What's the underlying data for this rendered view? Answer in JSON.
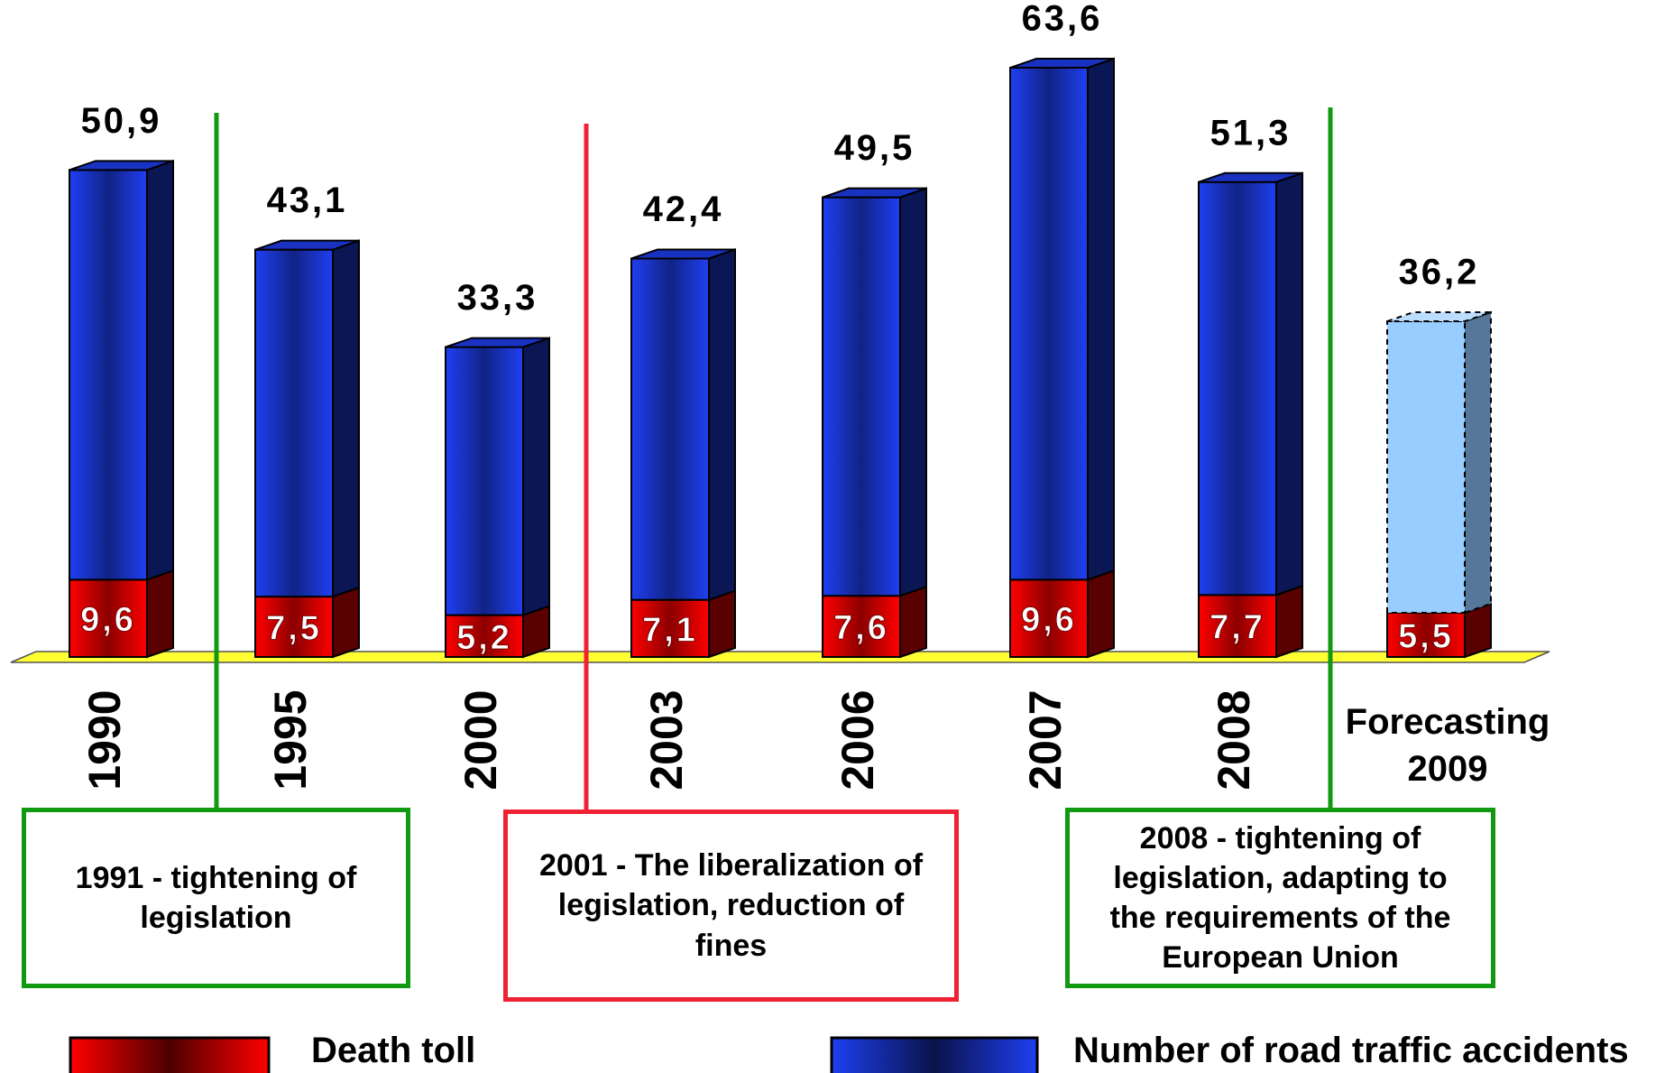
{
  "chart_data": {
    "type": "bar",
    "stacked": true,
    "categories": [
      "1990",
      "1995",
      "2000",
      "2003",
      "2006",
      "2007",
      "2008",
      "Forecasting 2009"
    ],
    "series": [
      {
        "name": "Death toll",
        "color": "#ff0000",
        "values": [
          9.6,
          7.5,
          5.2,
          7.1,
          7.6,
          9.6,
          7.7,
          5.5
        ],
        "value_labels": [
          "9,6",
          "7,5",
          "5,2",
          "7,1",
          "7,6",
          "9,6",
          "7,7",
          "5,5"
        ]
      },
      {
        "name": "Number of road traffic accidents",
        "color": "#1f3ff2",
        "colors": [
          "#1f3ff2",
          "#1f3ff2",
          "#1f3ff2",
          "#1f3ff2",
          "#1f3ff2",
          "#1f3ff2",
          "#1f3ff2",
          "#99ccff"
        ],
        "values": [
          50.9,
          43.1,
          33.3,
          42.4,
          49.5,
          63.6,
          51.3,
          36.2
        ],
        "value_labels": [
          "50,9",
          "43,1",
          "33,3",
          "42,4",
          "49,5",
          "63,6",
          "51,3",
          "36,2"
        ]
      }
    ],
    "ylim": [
      0,
      75
    ],
    "floor_color": "#ffff33",
    "annotations": [
      {
        "text": "1991 - tightening of legislation",
        "color": "#119911"
      },
      {
        "text": "2001 - The liberalization of legislation, reduction of fines",
        "color": "#ee2233"
      },
      {
        "text": "2008 - tightening of legislation, adapting to the requirements of the European Union",
        "color": "#119911"
      }
    ]
  }
}
